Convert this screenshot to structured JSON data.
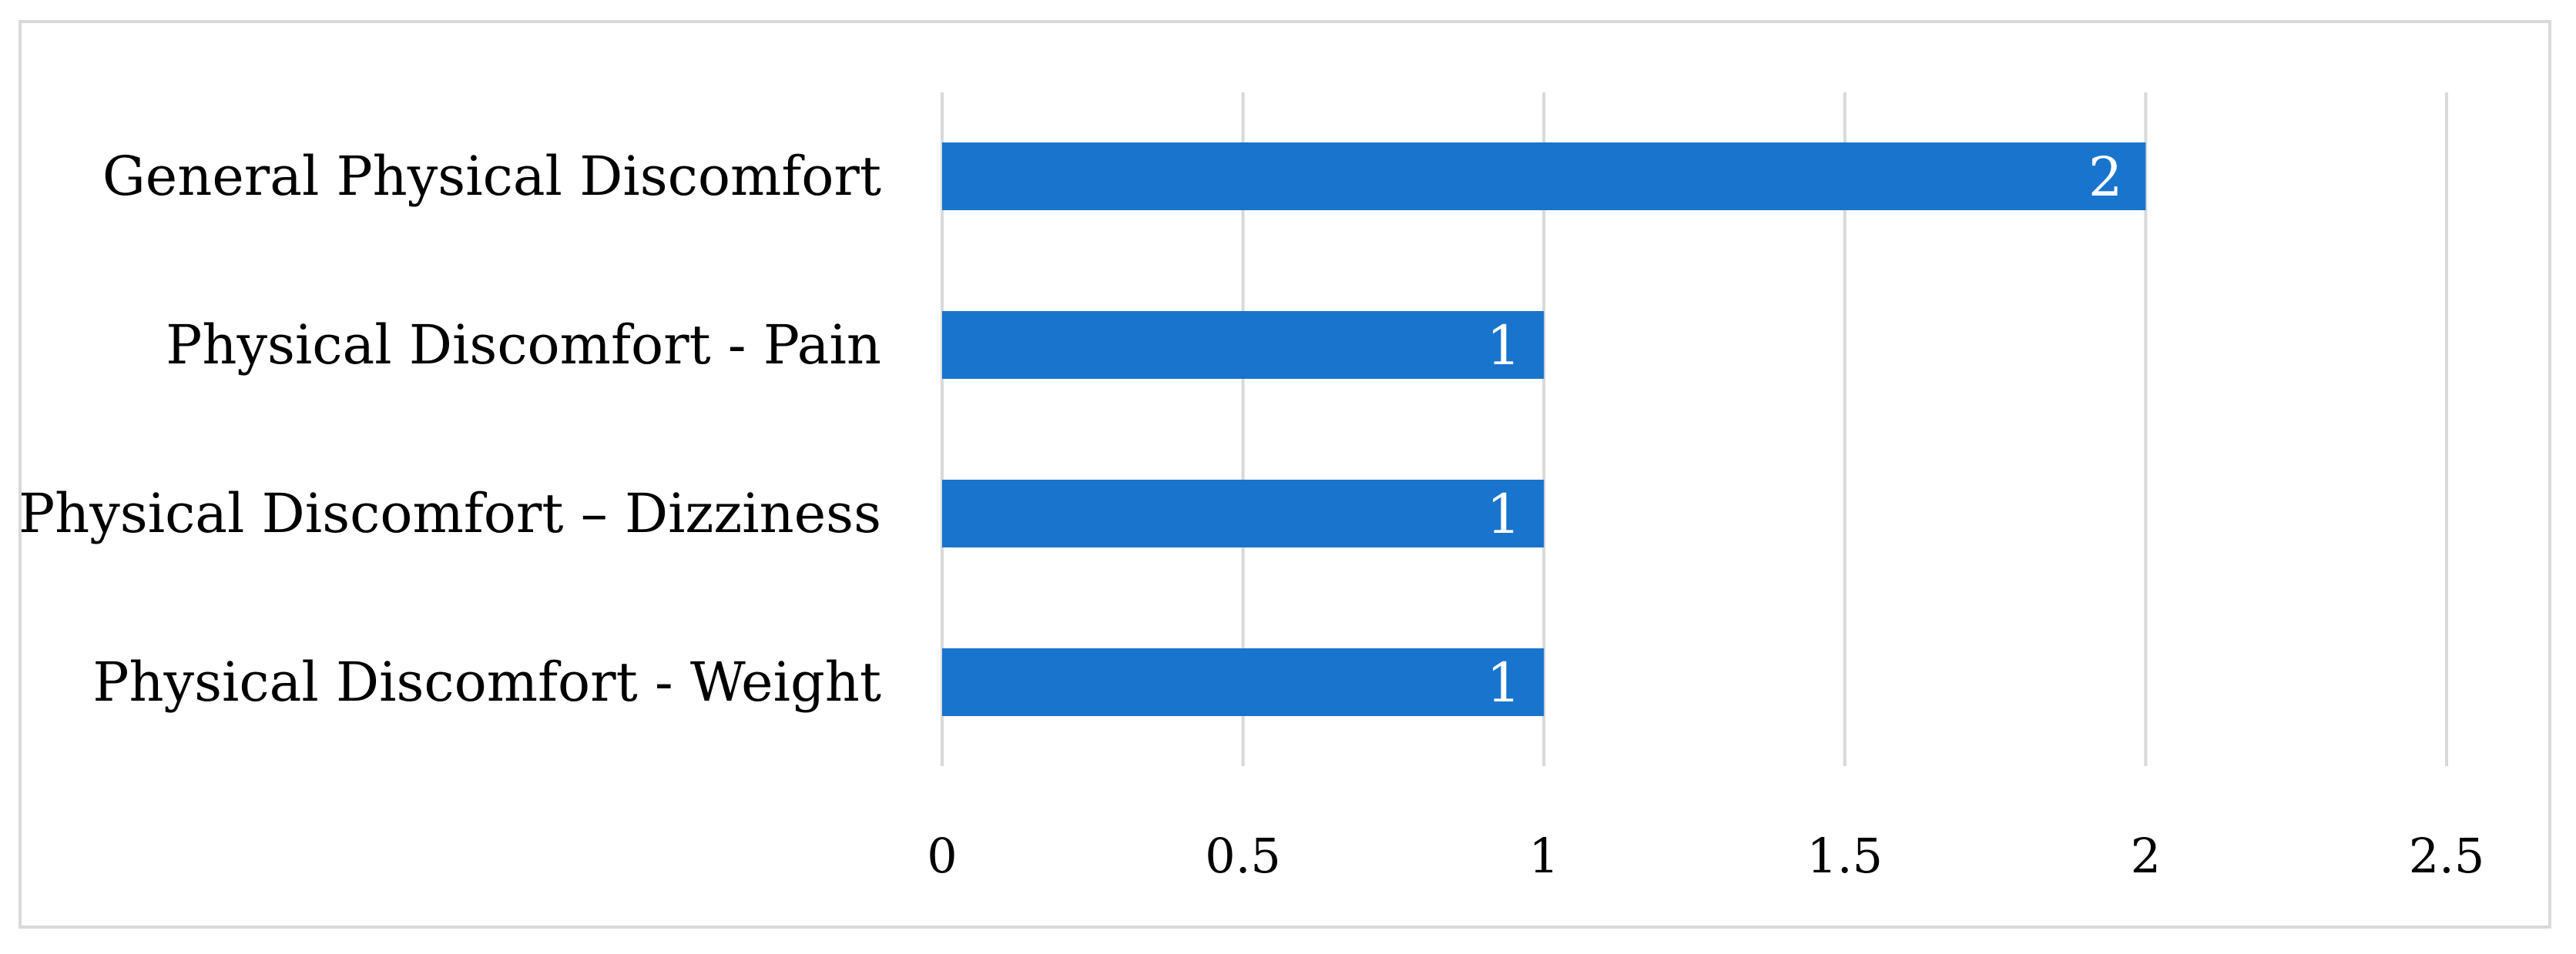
{
  "chart_data": {
    "type": "bar",
    "orientation": "horizontal",
    "categories": [
      "General Physical Discomfort",
      "Physical Discomfort - Pain",
      "Physical Discomfort – Dizziness",
      "Physical Discomfort - Weight"
    ],
    "values": [
      2,
      1,
      1,
      1
    ],
    "data_labels": [
      "2",
      "1",
      "1",
      "1"
    ],
    "xticks": [
      "0",
      "0.5",
      "1",
      "1.5",
      "2",
      "2.5"
    ],
    "xlim": [
      0,
      2.5
    ],
    "title": "",
    "xlabel": "",
    "ylabel": "",
    "grid": true,
    "legend": "none",
    "bar_color": "#1874CD",
    "grid_color": "#d9d9d9"
  }
}
